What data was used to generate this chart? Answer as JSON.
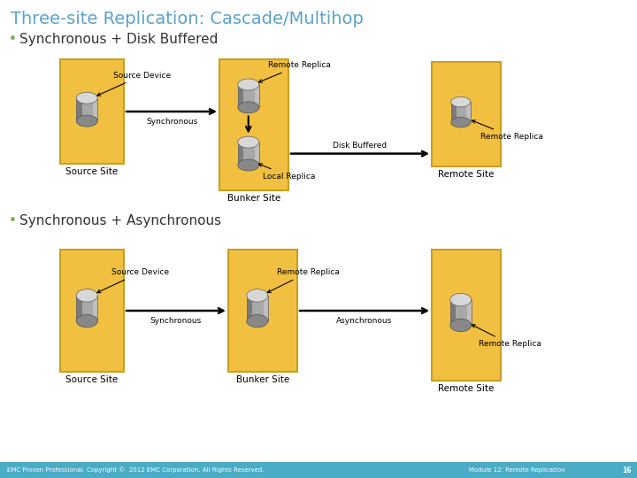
{
  "title": "Three-site Replication: Cascade/Multihop",
  "title_color": "#5BA3C9",
  "title_fontsize": 14,
  "bg_color": "#FFFFFF",
  "footer_color": "#4BACC6",
  "footer_text_left": "EMC Proven Professional. Copyright ©  2012 EMC Corporation. All Rights Reserved.",
  "footer_text_right": "Module 12: Remote Replication",
  "footer_page": "16",
  "bullet_color": "#70AD47",
  "bullet1_text": "Synchronous + Disk Buffered",
  "bullet2_text": "Synchronous + Asynchronous",
  "box_color": "#F2C040",
  "box_edge_color": "#C8A020",
  "label_fontsize": 6.5,
  "site_label_fontsize": 7.5,
  "bullet_fontsize": 11,
  "arrow_color": "#000000"
}
